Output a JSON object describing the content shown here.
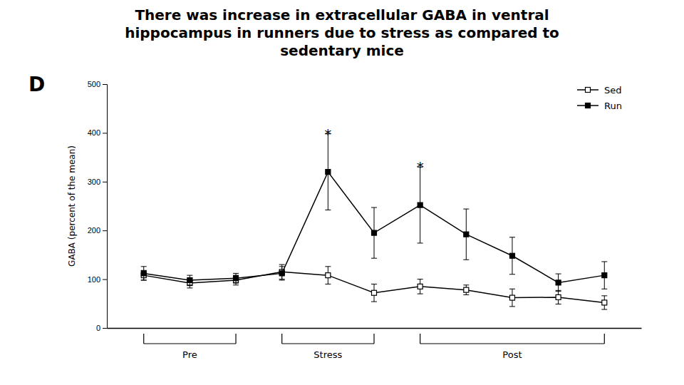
{
  "chart_data": {
    "type": "line",
    "title": "There was increase in extracellular GABA in ventral\nhippocampus in runners due to stress as compared to\nsedentary mice",
    "y_label": "GABA (percent of the mean)",
    "x": [
      1,
      2,
      3,
      4,
      5,
      6,
      7,
      8,
      9,
      10,
      11
    ],
    "xlim": [
      0.2,
      11.8
    ],
    "xticks": [],
    "ylim": [
      0,
      500
    ],
    "yticks": [
      0,
      100,
      200,
      300,
      400,
      500
    ],
    "tick_labels": "y",
    "legend": "upper-right",
    "series": [
      {
        "name": "Sed",
        "color": "#000000",
        "marker": "open-square",
        "values": [
          108,
          92,
          98,
          115,
          108,
          72,
          85,
          78,
          62,
          63,
          52
        ],
        "errors": [
          10,
          10,
          10,
          15,
          18,
          18,
          15,
          10,
          18,
          14,
          14
        ]
      },
      {
        "name": "Run",
        "color": "#000000",
        "marker": "square",
        "values": [
          112,
          98,
          102,
          112,
          320,
          195,
          252,
          192,
          148,
          93,
          108
        ],
        "errors": [
          14,
          10,
          10,
          14,
          78,
          52,
          78,
          52,
          38,
          18,
          28
        ]
      }
    ],
    "annotations": [
      {
        "text": "D"
      },
      {
        "text": "*",
        "x": 5,
        "y": 402
      },
      {
        "text": "*",
        "x": 7,
        "y": 335
      },
      {
        "text": "Pre",
        "x_start": 1,
        "x_end": 3
      },
      {
        "text": "Stress",
        "x_start": 4,
        "x_end": 6
      },
      {
        "text": "Post",
        "x_start": 7,
        "x_end": 11
      }
    ]
  }
}
